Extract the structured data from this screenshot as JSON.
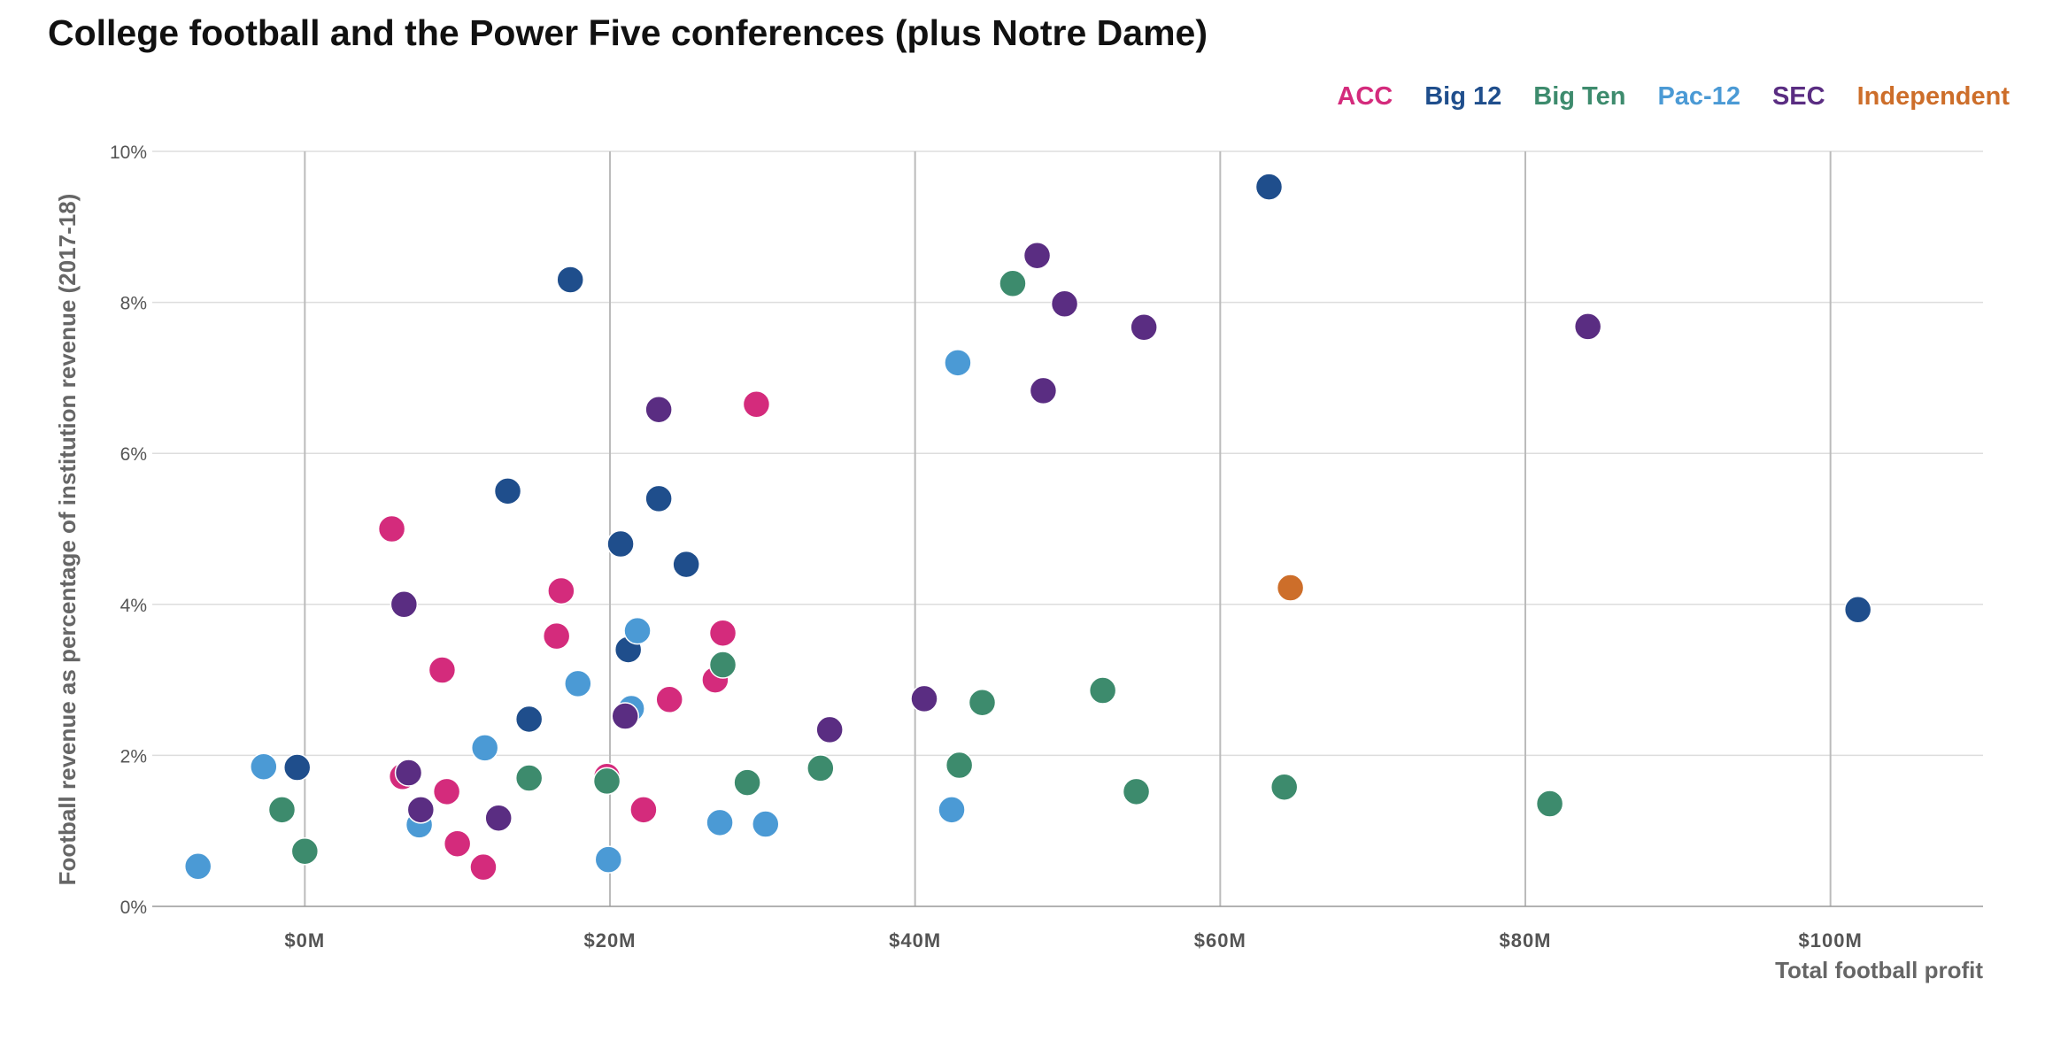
{
  "chart_data": {
    "type": "scatter",
    "title": "College football and the Power Five conferences (plus Notre Dame)",
    "xlabel": "Total football profit",
    "ylabel": "Football revenue as percentage of institution revenue (2017-18)",
    "xlim": [
      -10,
      110
    ],
    "ylim": [
      0,
      10
    ],
    "x_ticks": [
      0,
      20,
      40,
      60,
      80,
      100
    ],
    "x_tick_labels": [
      "$0M",
      "$20M",
      "$40M",
      "$60M",
      "$80M",
      "$100M"
    ],
    "y_ticks": [
      0,
      2,
      4,
      6,
      8,
      10
    ],
    "y_tick_labels": [
      "0%",
      "2%",
      "4%",
      "6%",
      "8%",
      "10%"
    ],
    "grid": true,
    "legend_position": "top-right",
    "series": [
      {
        "name": "ACC",
        "color": "#d42b7c",
        "x": [
          5.7,
          6.4,
          9.0,
          9.3,
          10.0,
          11.7,
          16.5,
          16.8,
          19.8,
          22.2,
          23.9,
          26.9,
          27.4,
          29.6
        ],
        "y": [
          5.0,
          1.72,
          3.13,
          1.52,
          0.83,
          0.52,
          3.58,
          4.18,
          1.72,
          1.28,
          2.74,
          3.0,
          3.62,
          6.65
        ]
      },
      {
        "name": "Big 12",
        "color": "#1f4e8c",
        "x": [
          -0.5,
          13.3,
          14.7,
          17.4,
          20.7,
          21.2,
          23.2,
          25.0,
          63.2,
          101.8
        ],
        "y": [
          1.84,
          5.5,
          2.48,
          8.3,
          4.8,
          3.4,
          5.4,
          4.53,
          9.53,
          3.93
        ]
      },
      {
        "name": "Big Ten",
        "color": "#3d8b6d",
        "x": [
          -1.5,
          0.0,
          14.7,
          19.8,
          27.4,
          29.0,
          33.8,
          42.9,
          44.4,
          46.4,
          52.3,
          54.5,
          64.2,
          81.6
        ],
        "y": [
          1.28,
          0.73,
          1.7,
          1.66,
          3.2,
          1.64,
          1.83,
          1.87,
          2.7,
          8.25,
          2.86,
          1.52,
          1.58,
          1.36
        ]
      },
      {
        "name": "Pac-12",
        "color": "#4b9ad5",
        "x": [
          -7.0,
          -2.7,
          7.5,
          11.8,
          17.9,
          19.9,
          21.4,
          21.8,
          27.2,
          30.2,
          42.4,
          42.8
        ],
        "y": [
          0.53,
          1.85,
          1.08,
          2.1,
          2.95,
          0.62,
          2.62,
          3.65,
          1.11,
          1.09,
          1.28,
          7.2
        ]
      },
      {
        "name": "SEC",
        "color": "#5a2d82",
        "x": [
          6.5,
          6.8,
          7.6,
          12.7,
          21.0,
          23.2,
          34.4,
          40.6,
          48.0,
          48.4,
          49.8,
          55.0,
          84.1
        ],
        "y": [
          4.0,
          1.77,
          1.28,
          1.17,
          2.52,
          6.58,
          2.34,
          2.75,
          8.62,
          6.83,
          7.98,
          7.67,
          7.68
        ]
      },
      {
        "name": "Independent",
        "color": "#cd6e2a",
        "x": [
          64.6
        ],
        "y": [
          4.22
        ]
      }
    ]
  }
}
